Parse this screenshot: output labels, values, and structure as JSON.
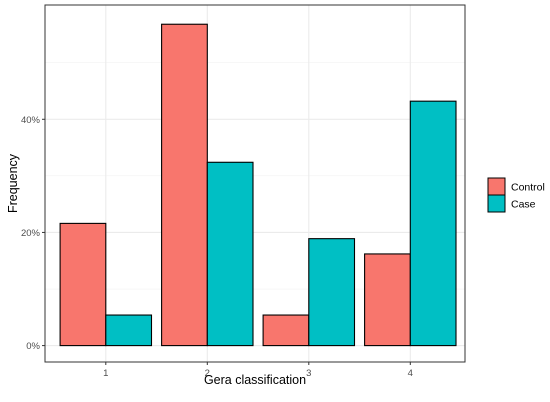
{
  "chart_data": {
    "type": "bar",
    "title": "",
    "xlabel": "Gera classification",
    "ylabel": "Frequency",
    "categories": [
      "1",
      "2",
      "3",
      "4"
    ],
    "y_ticks": [
      {
        "value": 0,
        "label": "0%"
      },
      {
        "value": 20,
        "label": "20%"
      },
      {
        "value": 40,
        "label": "40%"
      }
    ],
    "ylim": [
      -2.9,
      60.2
    ],
    "grid": true,
    "legend_position": "right",
    "series": [
      {
        "name": "Control",
        "color": "#F8766D",
        "values": [
          21.6,
          56.8,
          5.4,
          16.2
        ]
      },
      {
        "name": "Case",
        "color": "#00BFC4",
        "values": [
          5.4,
          32.4,
          18.9,
          43.2
        ]
      }
    ]
  }
}
